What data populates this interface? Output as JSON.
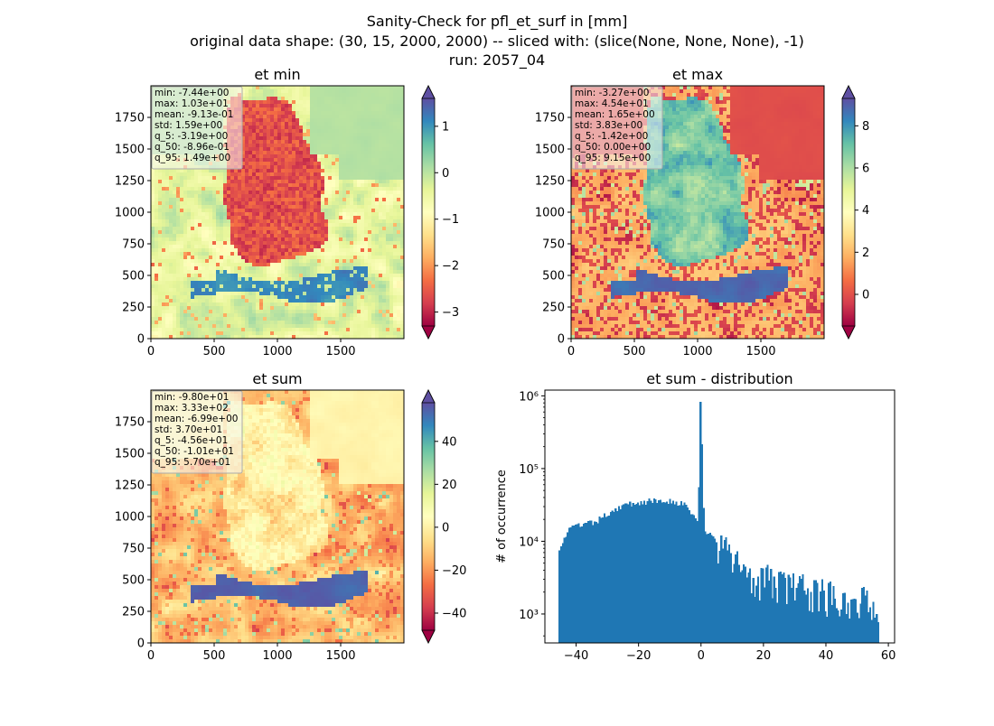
{
  "figure": {
    "title_lines": [
      "Sanity-Check for pfl_et_surf in [mm]",
      "original data shape: (30, 15, 2000, 2000) -- sliced with: (slice(None, None, None), -1)",
      "run: 2057_04"
    ]
  },
  "chart_data": [
    {
      "type": "heatmap",
      "title": "et min",
      "xlim": [
        0,
        2000
      ],
      "ylim": [
        0,
        2000
      ],
      "x_ticks": [
        "0",
        "500",
        "1000",
        "1500"
      ],
      "y_ticks": [
        "0",
        "250",
        "500",
        "750",
        "1000",
        "1250",
        "1500",
        "1750"
      ],
      "colormap": "Spectral",
      "colorbar": {
        "range": [
          -3.3,
          1.6
        ],
        "ticks": [
          "−3",
          "−2",
          "−1",
          "0",
          "1"
        ],
        "tick_values": [
          -3,
          -2,
          -1,
          0,
          1
        ],
        "extend": "both"
      },
      "stats": [
        "min: -7.44e+00",
        "max: 1.03e+01",
        "mean: -9.13e-01",
        "std: 1.59e+00",
        "q_5: -3.19e+00",
        "q_50: -8.96e-01",
        "q_95: 1.49e+00"
      ]
    },
    {
      "type": "heatmap",
      "title": "et max",
      "xlim": [
        0,
        2000
      ],
      "ylim": [
        0,
        2000
      ],
      "x_ticks": [
        "0",
        "500",
        "1000",
        "1500"
      ],
      "y_ticks": [
        "0",
        "250",
        "500",
        "750",
        "1000",
        "1250",
        "1500",
        "1750"
      ],
      "colormap": "Spectral",
      "colorbar": {
        "range": [
          -1.5,
          9.3
        ],
        "ticks": [
          "0",
          "2",
          "4",
          "6",
          "8"
        ],
        "tick_values": [
          0,
          2,
          4,
          6,
          8
        ],
        "extend": "both"
      },
      "stats": [
        "min: -3.27e+00",
        "max: 4.54e+01",
        "mean: 1.65e+00",
        "std: 3.83e+00",
        "q_5: -1.42e+00",
        "q_50: 0.00e+00",
        "q_95: 9.15e+00"
      ]
    },
    {
      "type": "heatmap",
      "title": "et sum",
      "xlim": [
        0,
        2000
      ],
      "ylim": [
        0,
        2000
      ],
      "x_ticks": [
        "0",
        "500",
        "1000",
        "1500"
      ],
      "y_ticks": [
        "0",
        "250",
        "500",
        "750",
        "1000",
        "1250",
        "1500",
        "1750"
      ],
      "colormap": "Spectral",
      "colorbar": {
        "range": [
          -48,
          58
        ],
        "ticks": [
          "−40",
          "−20",
          "0",
          "20",
          "40"
        ],
        "tick_values": [
          -40,
          -20,
          0,
          20,
          40
        ],
        "extend": "both"
      },
      "stats": [
        "min: -9.80e+01",
        "max: 3.33e+02",
        "mean: -6.99e+00",
        "std: 3.70e+01",
        "q_5: -4.56e+01",
        "q_50: -1.01e+01",
        "q_95: 5.70e+01"
      ]
    },
    {
      "type": "bar",
      "title": "et sum - distribution",
      "xlabel": "",
      "ylabel": "# of occurrence",
      "xlim": [
        -50,
        62
      ],
      "ylim": [
        400,
        1200000
      ],
      "y_scale": "log",
      "x_ticks": [
        "−40",
        "−20",
        "0",
        "20",
        "40",
        "60"
      ],
      "x_tick_values": [
        -40,
        -20,
        0,
        20,
        40,
        60
      ],
      "y_ticks": [
        "10³",
        "10⁴",
        "10⁵",
        "10⁶"
      ],
      "y_tick_values": [
        1000,
        10000,
        100000,
        1000000
      ],
      "bin_range": [
        -45.6,
        57.0
      ],
      "bin_count": 200,
      "approx_profile_points": [
        [
          -45.6,
          8000
        ],
        [
          -42,
          15000
        ],
        [
          -38,
          17000
        ],
        [
          -34,
          18000
        ],
        [
          -30,
          24000
        ],
        [
          -26,
          30000
        ],
        [
          -22,
          33000
        ],
        [
          -18,
          35000
        ],
        [
          -14,
          36000
        ],
        [
          -10,
          36000
        ],
        [
          -6,
          33000
        ],
        [
          -3,
          25000
        ],
        [
          -1,
          18000
        ],
        [
          0,
          830000
        ],
        [
          1,
          14000
        ],
        [
          3,
          12000
        ],
        [
          6,
          9000
        ],
        [
          10,
          6000
        ],
        [
          14,
          4200
        ],
        [
          20,
          3200
        ],
        [
          30,
          2400
        ],
        [
          40,
          2000
        ],
        [
          50,
          1600
        ],
        [
          57,
          1500
        ]
      ],
      "color": "#1f77b4"
    }
  ]
}
